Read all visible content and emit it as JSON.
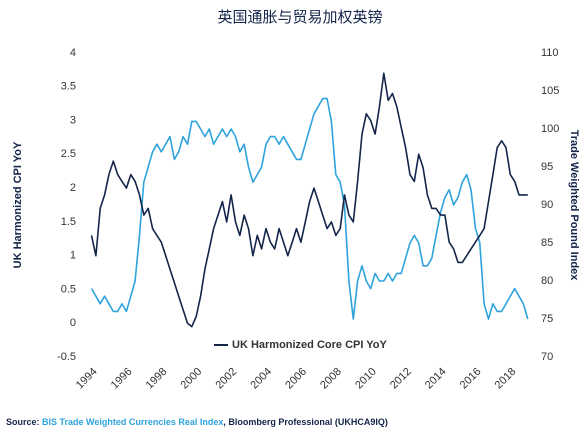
{
  "chart_data": {
    "type": "line",
    "title": "英国通胀与贸易加权英镑",
    "ylabel": "UK Harmonized CPI YoY",
    "y2label": "Trade Weighted Pound Index",
    "source": {
      "prefix": "Source: ",
      "link": "BIS Trade Weighted Currencies Real Index",
      "suffix": ", Bloomberg Professional (UKHCA9IQ)"
    },
    "legend": "bottom-center",
    "x": [
      1994,
      1994.25,
      1994.5,
      1994.75,
      1995,
      1995.25,
      1995.5,
      1995.75,
      1996,
      1996.25,
      1996.5,
      1996.75,
      1997,
      1997.25,
      1997.5,
      1997.75,
      1998,
      1998.25,
      1998.5,
      1998.75,
      1999,
      1999.25,
      1999.5,
      1999.75,
      2000,
      2000.25,
      2000.5,
      2000.75,
      2001,
      2001.25,
      2001.5,
      2001.75,
      2002,
      2002.25,
      2002.5,
      2002.75,
      2003,
      2003.25,
      2003.5,
      2003.75,
      2004,
      2004.25,
      2004.5,
      2004.75,
      2005,
      2005.25,
      2005.5,
      2005.75,
      2006,
      2006.25,
      2006.5,
      2006.75,
      2007,
      2007.25,
      2007.5,
      2007.75,
      2008,
      2008.25,
      2008.5,
      2008.75,
      2009,
      2009.25,
      2009.5,
      2009.75,
      2010,
      2010.25,
      2010.5,
      2010.75,
      2011,
      2011.25,
      2011.5,
      2011.75,
      2012,
      2012.25,
      2012.5,
      2012.75,
      2013,
      2013.25,
      2013.5,
      2013.75,
      2014,
      2014.25,
      2014.5,
      2014.75,
      2015,
      2015.25,
      2015.5,
      2015.75,
      2016,
      2016.25,
      2016.5,
      2016.75,
      2017,
      2017.25,
      2017.5,
      2017.75,
      2018,
      2018.25,
      2018.5,
      2018.75,
      2019
    ],
    "series": [
      {
        "name": "UK Harmonized Core CPI YoY",
        "color": "#14254a",
        "axis": "y",
        "values": [
          1.3,
          1.0,
          1.7,
          1.9,
          2.2,
          2.4,
          2.2,
          2.1,
          2.0,
          2.2,
          2.1,
          1.9,
          1.6,
          1.7,
          1.4,
          1.3,
          1.2,
          1.0,
          0.8,
          0.6,
          0.4,
          0.2,
          0.0,
          -0.05,
          0.1,
          0.4,
          0.8,
          1.1,
          1.4,
          1.6,
          1.8,
          1.5,
          1.9,
          1.5,
          1.3,
          1.6,
          1.4,
          1.0,
          1.3,
          1.1,
          1.4,
          1.2,
          1.1,
          1.4,
          1.2,
          1.0,
          1.2,
          1.4,
          1.2,
          1.5,
          1.8,
          2.0,
          1.8,
          1.6,
          1.4,
          1.5,
          1.3,
          1.4,
          1.9,
          1.6,
          1.5,
          2.1,
          2.8,
          3.1,
          3.0,
          2.8,
          3.2,
          3.7,
          3.3,
          3.4,
          3.2,
          2.9,
          2.6,
          2.2,
          2.1,
          2.5,
          2.3,
          1.9,
          1.7,
          1.7,
          1.6,
          1.6,
          1.2,
          1.1,
          0.9,
          0.9,
          1.0,
          1.1,
          1.2,
          1.3,
          1.4,
          1.8,
          2.2,
          2.6,
          2.7,
          2.6,
          2.2,
          2.1,
          1.9,
          1.9,
          1.9
        ]
      },
      {
        "color": "#2ea3dc",
        "axis": "y2",
        "values": [
          79,
          78,
          77,
          78,
          77,
          76,
          76,
          77,
          76,
          78,
          80,
          86,
          93,
          95,
          97,
          98,
          97,
          98,
          99,
          96,
          97,
          99,
          98,
          101,
          101,
          100,
          99,
          100,
          98,
          99,
          100,
          99,
          100,
          99,
          97,
          98,
          95,
          93,
          94,
          95,
          98,
          99,
          99,
          98,
          99,
          98,
          97,
          96,
          96,
          98,
          100,
          102,
          103,
          104,
          104,
          101,
          94,
          93,
          90,
          80,
          75,
          80,
          82,
          80,
          79,
          81,
          80,
          80,
          81,
          80,
          81,
          81,
          83,
          85,
          86,
          85,
          82,
          82,
          83,
          86,
          89,
          91,
          92,
          90,
          91,
          93,
          94,
          92,
          87,
          85,
          77,
          75,
          77,
          76,
          76,
          77,
          78,
          79,
          78,
          77,
          75
        ]
      }
    ],
    "xlim": [
      1993.8,
      2019.3
    ],
    "xticks": [
      1994,
      1996,
      1998,
      2000,
      2002,
      2004,
      2006,
      2008,
      2010,
      2012,
      2014,
      2016,
      2018
    ],
    "ylim": [
      -0.5,
      4
    ],
    "yticks": [
      4,
      3.5,
      3,
      2.5,
      2,
      1.5,
      1,
      0.5,
      0,
      -0.5
    ],
    "y2lim": [
      70,
      110
    ],
    "y2ticks": [
      110,
      105,
      100,
      95,
      90,
      85,
      80,
      75,
      70
    ]
  }
}
